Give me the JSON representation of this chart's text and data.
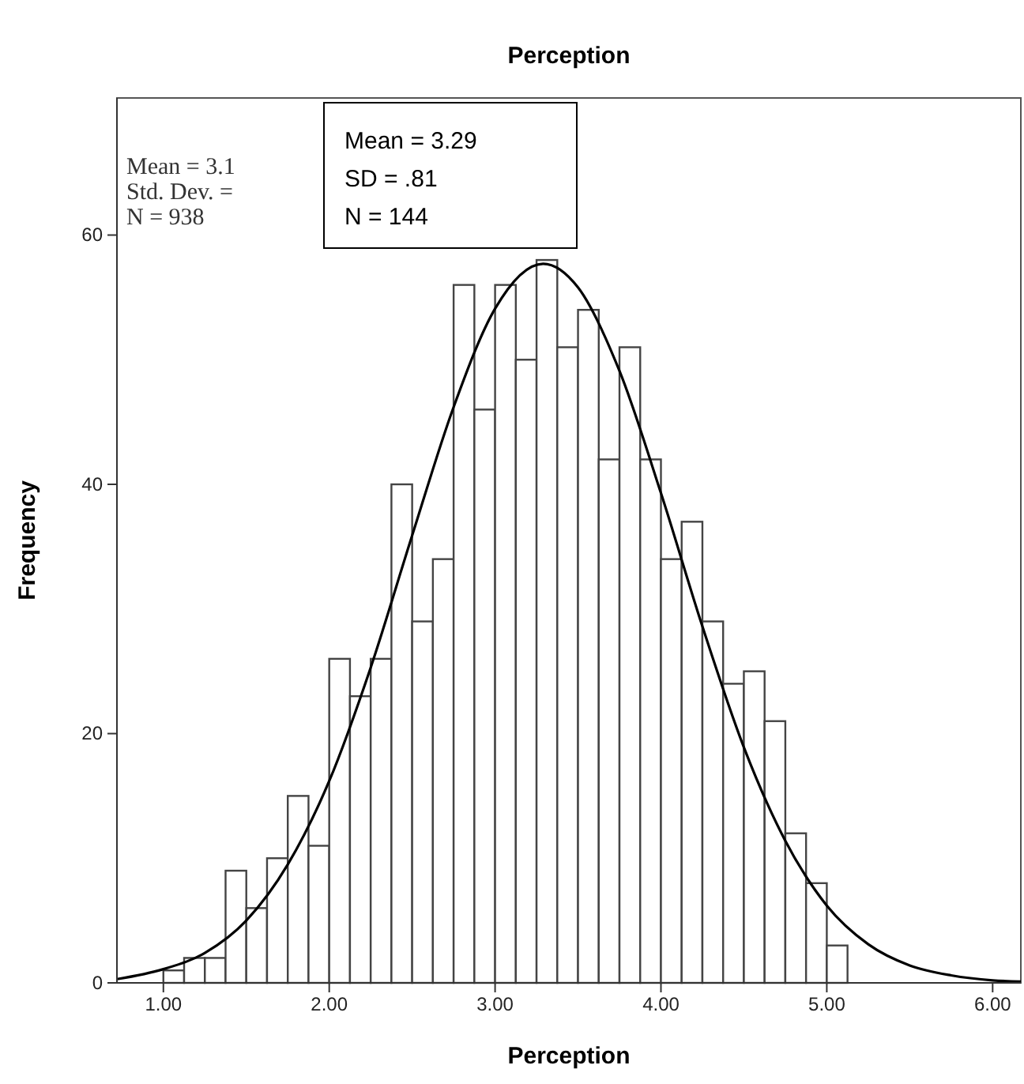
{
  "chart_data": {
    "type": "histogram",
    "title": "Perception",
    "xlabel": "Perception",
    "ylabel": "Frequency",
    "bins": [
      1,
      1.125,
      1.25,
      1.375,
      1.5,
      1.625,
      1.75,
      1.875,
      2,
      2.125,
      2.25,
      2.375,
      2.5,
      2.625,
      2.75,
      2.875,
      3,
      3.125,
      3.25,
      3.375,
      3.5,
      3.625,
      3.75,
      3.875,
      4,
      4.125,
      4.25,
      4.375,
      4.5,
      4.625,
      4.75,
      4.875,
      5,
      5.125
    ],
    "values": [
      1,
      2,
      2,
      9,
      6,
      10,
      15,
      11,
      26,
      23,
      26,
      40,
      29,
      34,
      56,
      46,
      56,
      50,
      58,
      51,
      54,
      42,
      51,
      42,
      34,
      37,
      29,
      24,
      25,
      21,
      12,
      8,
      3
    ],
    "color": "#ffffff",
    "series": [
      {
        "type": "line",
        "color": "#000000",
        "x": [
          0.72,
          1,
          1.25,
          1.5,
          1.75,
          2,
          2.25,
          2.5,
          2.75,
          3,
          3.29,
          3.5,
          3.75,
          4,
          4.25,
          4.5,
          4.75,
          5,
          5.25,
          5.5,
          5.75,
          6,
          6.17
        ],
        "values": [
          0.3,
          1.1,
          2.4,
          5,
          9.5,
          16.2,
          25.3,
          35.9,
          46.2,
          54.1,
          57.7,
          55.8,
          49.1,
          39.3,
          28.6,
          18.9,
          11.4,
          6.2,
          3.1,
          1.4,
          0.6,
          0.2,
          0.1
        ]
      }
    ],
    "xlim": [
      0.72,
      6.17
    ],
    "ylim": [
      0,
      71
    ],
    "xticks": [
      {
        "value": 1,
        "label": "1.00"
      },
      {
        "value": 2,
        "label": "2.00"
      },
      {
        "value": 3,
        "label": "3.00"
      },
      {
        "value": 4,
        "label": "4.00"
      },
      {
        "value": 5,
        "label": "5.00"
      },
      {
        "value": 6,
        "label": "6.00"
      }
    ],
    "yticks": [
      0,
      20,
      40,
      60
    ],
    "annotations": [
      "Mean = 3.1",
      "Std. Dev. =",
      "N = 938",
      "Mean = 3.29",
      "SD = .81",
      "N = 144"
    ]
  }
}
